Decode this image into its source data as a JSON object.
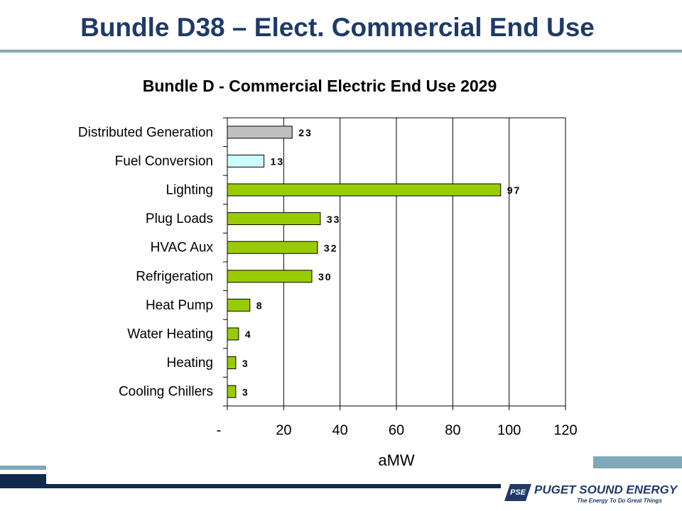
{
  "header": {
    "title": "Bundle D38 – Elect. Commercial End Use"
  },
  "chart_data": {
    "type": "bar",
    "orientation": "horizontal",
    "title": "Bundle D - Commercial Electric End Use 2029",
    "categories": [
      "Distributed Generation",
      "Fuel Conversion",
      "Lighting",
      "Plug Loads",
      "HVAC Aux",
      "Refrigeration",
      "Heat Pump",
      "Water Heating",
      "Heating",
      "Cooling Chillers"
    ],
    "values": [
      23,
      13,
      97,
      33,
      32,
      30,
      8,
      4,
      3,
      3
    ],
    "colors": [
      "#c0c0c0",
      "#ccffff",
      "#99cc00",
      "#99cc00",
      "#99cc00",
      "#99cc00",
      "#99cc00",
      "#99cc00",
      "#99cc00",
      "#99cc00"
    ],
    "xlabel": "aMW",
    "xlim": [
      0,
      120
    ],
    "xticks": [
      {
        "value": 0,
        "label": "-"
      },
      20,
      40,
      60,
      80,
      100,
      120
    ],
    "grid": true
  },
  "footer": {
    "logo_mark": "PSE",
    "company": "PUGET SOUND ENERGY",
    "tagline": "The Energy To Do Great Things"
  }
}
